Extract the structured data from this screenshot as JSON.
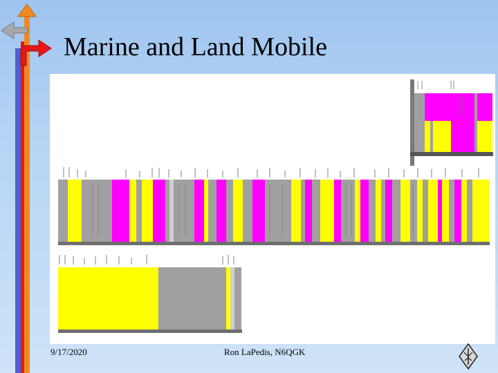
{
  "slide": {
    "title": "Marine and Land Mobile",
    "footer_date": "9/17/2020",
    "footer_author": "Ron LaPedis, N6QGK"
  },
  "icons": [
    "back-arrow-icon",
    "up-arrow-icon",
    "next-arrow-icon",
    "arrl-diamond-logo"
  ],
  "colors": {
    "background_top": "#9ec4ef",
    "background_bottom": "#cfe3f7",
    "chart_yellow": "#ffff00",
    "chart_magenta": "#ff00ff",
    "chart_gray": "#a0a0a0",
    "arrow_orange": "#f08a20",
    "arrow_red": "#e81818",
    "arrow_blue": "#5060d0"
  },
  "chart": {
    "type": "frequency-allocation-bands",
    "band_colors": [
      "#ffff00",
      "#ff00ff",
      "#a0a0a0",
      "#cfcfcf",
      "#6f6f6f"
    ],
    "rows": [
      {
        "name": "top-right-inset",
        "segments": [
          "#a0a0a0",
          "#ff00ff",
          "#ff00ff",
          "#ffff00",
          "#ffff00",
          "#a0a0a0",
          "#ffff00",
          "#ff00ff",
          "#ffff00"
        ]
      },
      {
        "name": "main-row",
        "segments": [
          "#a0a0a0",
          "#ffff00",
          "#a0a0a0",
          "#cfcfcf",
          "#ff00ff",
          "#ffff00",
          "#a0a0a0",
          "#ffff00",
          "#ff00ff",
          "#a0a0a0",
          "#ffff00",
          "#a0a0a0",
          "#ff00ff",
          "#a0a0a0",
          "#ffff00",
          "#a0a0a0",
          "#ff00ff",
          "#ffff00",
          "#a0a0a0",
          "#ffff00",
          "#ff00ff",
          "#a0a0a0",
          "#ffff00",
          "#a0a0a0",
          "#ff00ff",
          "#a0a0a0",
          "#ffff00",
          "#ff00ff",
          "#a0a0a0",
          "#ffff00",
          "#a0a0a0",
          "#ff00ff",
          "#ffff00",
          "#a0a0a0",
          "#ffff00",
          "#a0a0a0",
          "#ff00ff",
          "#ffff00",
          "#a0a0a0",
          "#ffff00"
        ]
      },
      {
        "name": "bottom-row",
        "segments": [
          "#ffff00",
          "#a0a0a0",
          "#a0a0a0",
          "#ffff00",
          "#cfcfcf",
          "#a0a0a0"
        ]
      }
    ]
  }
}
